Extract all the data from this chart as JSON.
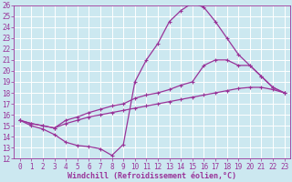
{
  "xlabel": "Windchill (Refroidissement éolien,°C)",
  "line_color": "#993399",
  "bg_color": "#cce8f0",
  "grid_color": "#ffffff",
  "xlim": [
    -0.5,
    23.5
  ],
  "ylim": [
    12,
    26
  ],
  "xticks": [
    0,
    1,
    2,
    3,
    4,
    5,
    6,
    7,
    8,
    9,
    10,
    11,
    12,
    13,
    14,
    15,
    16,
    17,
    18,
    19,
    20,
    21,
    22,
    23
  ],
  "yticks": [
    12,
    13,
    14,
    15,
    16,
    17,
    18,
    19,
    20,
    21,
    22,
    23,
    24,
    25,
    26
  ],
  "line1_x": [
    0,
    1,
    2,
    3,
    4,
    5,
    6,
    7,
    8,
    9,
    10,
    11,
    12,
    13,
    14,
    15,
    16,
    17,
    18,
    19,
    20,
    21,
    22,
    23
  ],
  "line1_y": [
    15.5,
    15.0,
    14.7,
    14.2,
    13.5,
    13.2,
    13.1,
    12.9,
    12.3,
    13.3,
    19.0,
    21.0,
    22.5,
    24.5,
    25.5,
    26.2,
    25.8,
    24.5,
    23.0,
    21.5,
    20.5,
    19.5,
    18.5,
    18.0
  ],
  "line2_x": [
    0,
    1,
    2,
    3,
    4,
    5,
    6,
    7,
    8,
    9,
    10,
    11,
    12,
    13,
    14,
    15,
    16,
    17,
    18,
    19,
    20,
    21,
    22,
    23
  ],
  "line2_y": [
    15.5,
    15.2,
    15.0,
    14.8,
    15.5,
    15.8,
    16.2,
    16.5,
    16.8,
    17.0,
    17.5,
    17.8,
    18.0,
    18.3,
    18.7,
    19.0,
    20.5,
    21.0,
    21.0,
    20.5,
    20.5,
    19.5,
    18.5,
    18.0
  ],
  "line3_x": [
    0,
    1,
    2,
    3,
    4,
    5,
    6,
    7,
    8,
    9,
    10,
    11,
    12,
    13,
    14,
    15,
    16,
    17,
    18,
    19,
    20,
    21,
    22,
    23
  ],
  "line3_y": [
    15.5,
    15.2,
    15.0,
    14.8,
    15.2,
    15.5,
    15.8,
    16.0,
    16.2,
    16.4,
    16.6,
    16.8,
    17.0,
    17.2,
    17.4,
    17.6,
    17.8,
    18.0,
    18.2,
    18.4,
    18.5,
    18.5,
    18.3,
    18.0
  ],
  "tick_fontsize": 5.5,
  "xlabel_fontsize": 6.0,
  "marker_size": 3,
  "linewidth": 0.9
}
